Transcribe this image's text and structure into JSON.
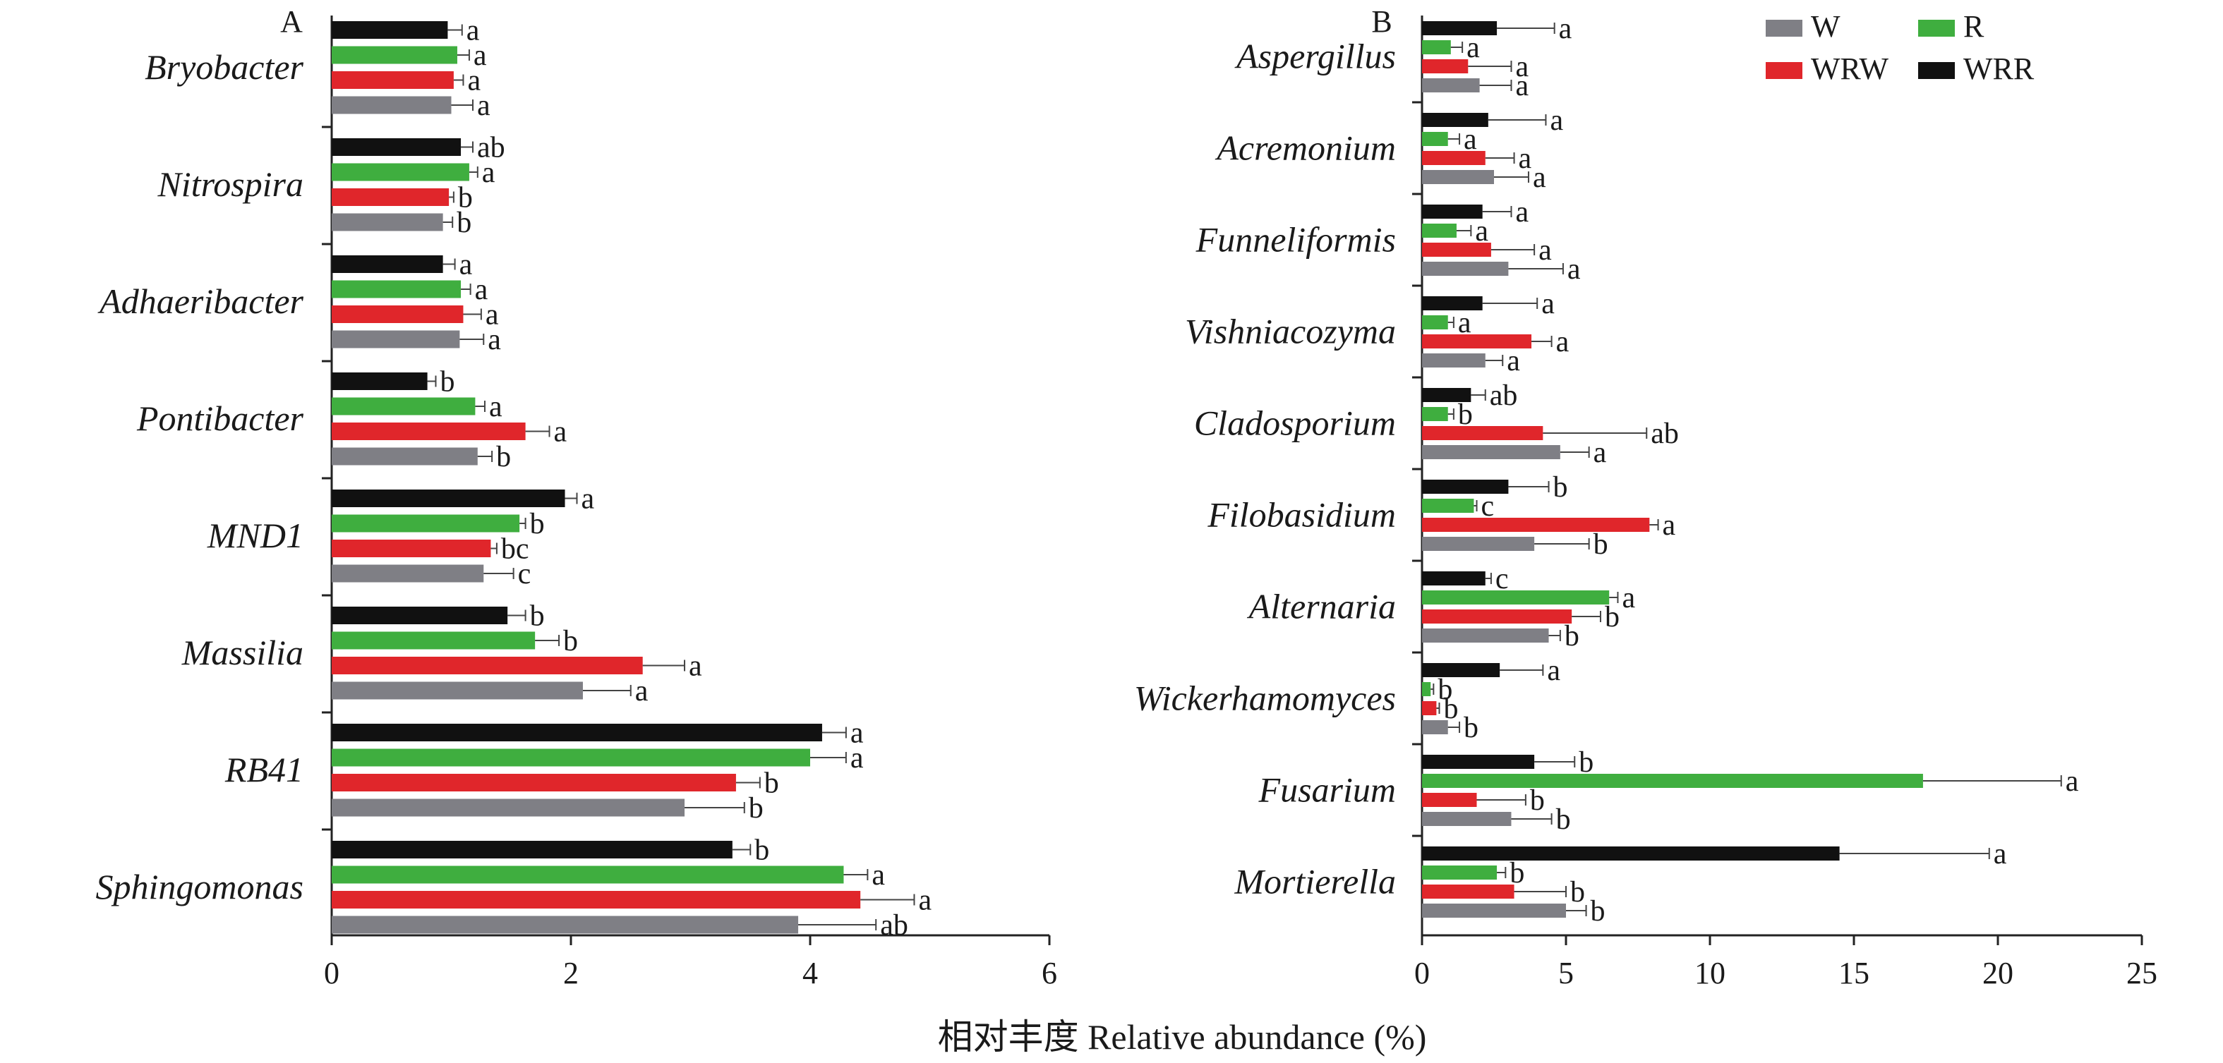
{
  "xlabel": "相对丰度 Relative abundance (%)",
  "legend": [
    {
      "name": "W",
      "color": "#7f7f85"
    },
    {
      "name": "R",
      "color": "#3fae3f"
    },
    {
      "name": "WRW",
      "color": "#e0262b"
    },
    {
      "name": "WRR",
      "color": "#111111"
    }
  ],
  "chart_data": [
    {
      "type": "bar",
      "orientation": "horizontal",
      "panel": "A",
      "xlim": [
        0,
        6
      ],
      "xticks": [
        0,
        2,
        4,
        6
      ],
      "categories": [
        "Bryobacter",
        "Nitrospira",
        "Adhaeribacter",
        "Pontibacter",
        "MND1",
        "Massilia",
        "RB41",
        "Sphingomonas"
      ],
      "series": [
        {
          "name": "WRR",
          "color": "#111111",
          "values": [
            0.97,
            1.08,
            0.93,
            0.8,
            1.95,
            1.47,
            4.1,
            3.35
          ],
          "errors": [
            0.12,
            0.1,
            0.1,
            0.07,
            0.1,
            0.15,
            0.2,
            0.15
          ],
          "labels": [
            "a",
            "ab",
            "a",
            "b",
            "a",
            "b",
            "a",
            "b"
          ]
        },
        {
          "name": "R",
          "color": "#3fae3f",
          "values": [
            1.05,
            1.15,
            1.08,
            1.2,
            1.57,
            1.7,
            4.0,
            4.28
          ],
          "errors": [
            0.1,
            0.07,
            0.08,
            0.08,
            0.05,
            0.2,
            0.3,
            0.2
          ],
          "labels": [
            "a",
            "a",
            "a",
            "a",
            "b",
            "b",
            "a",
            "a"
          ]
        },
        {
          "name": "WRW",
          "color": "#e0262b",
          "values": [
            1.02,
            0.98,
            1.1,
            1.62,
            1.33,
            2.6,
            3.38,
            4.42
          ],
          "errors": [
            0.08,
            0.04,
            0.15,
            0.2,
            0.05,
            0.35,
            0.2,
            0.45
          ],
          "labels": [
            "a",
            "b",
            "a",
            "a",
            "bc",
            "a",
            "b",
            "a"
          ]
        },
        {
          "name": "W",
          "color": "#7f7f85",
          "values": [
            1.0,
            0.93,
            1.07,
            1.22,
            1.27,
            2.1,
            2.95,
            3.9
          ],
          "errors": [
            0.18,
            0.08,
            0.2,
            0.12,
            0.25,
            0.4,
            0.5,
            0.65
          ],
          "labels": [
            "a",
            "b",
            "a",
            "b",
            "c",
            "a",
            "b",
            "ab"
          ]
        }
      ]
    },
    {
      "type": "bar",
      "orientation": "horizontal",
      "panel": "B",
      "xlim": [
        0,
        25
      ],
      "xticks": [
        0,
        5,
        10,
        15,
        20,
        25
      ],
      "categories": [
        "Aspergillus",
        "Acremonium",
        "Funneliformis",
        "Vishniacozyma",
        "Cladosporium",
        "Filobasidium",
        "Alternaria",
        "Wickerhamomyces",
        "Fusarium",
        "Mortierella"
      ],
      "series": [
        {
          "name": "WRR",
          "color": "#111111",
          "values": [
            2.6,
            2.3,
            2.1,
            2.1,
            1.7,
            3.0,
            2.2,
            2.7,
            3.9,
            14.5
          ],
          "errors": [
            2.0,
            2.0,
            1.0,
            1.9,
            0.5,
            1.4,
            0.2,
            1.5,
            1.4,
            5.2
          ],
          "labels": [
            "a",
            "a",
            "a",
            "a",
            "ab",
            "b",
            "c",
            "a",
            "b",
            "a"
          ]
        },
        {
          "name": "R",
          "color": "#3fae3f",
          "values": [
            1.0,
            0.9,
            1.2,
            0.9,
            0.9,
            1.8,
            6.5,
            0.3,
            17.4,
            2.6
          ],
          "errors": [
            0.4,
            0.4,
            0.5,
            0.2,
            0.2,
            0.1,
            0.3,
            0.1,
            4.8,
            0.3
          ],
          "labels": [
            "a",
            "a",
            "a",
            "a",
            "b",
            "c",
            "a",
            "b",
            "a",
            "b"
          ]
        },
        {
          "name": "WRW",
          "color": "#e0262b",
          "values": [
            1.6,
            2.2,
            2.4,
            3.8,
            4.2,
            7.9,
            5.2,
            0.5,
            1.9,
            3.2
          ],
          "errors": [
            1.5,
            1.0,
            1.5,
            0.7,
            3.6,
            0.3,
            1.0,
            0.1,
            1.7,
            1.8
          ],
          "labels": [
            "a",
            "a",
            "a",
            "a",
            "ab",
            "a",
            "b",
            "b",
            "b",
            "b"
          ]
        },
        {
          "name": "W",
          "color": "#7f7f85",
          "values": [
            2.0,
            2.5,
            3.0,
            2.2,
            4.8,
            3.9,
            4.4,
            0.9,
            3.1,
            5.0
          ],
          "errors": [
            1.1,
            1.2,
            1.9,
            0.6,
            1.0,
            1.9,
            0.4,
            0.4,
            1.4,
            0.7
          ],
          "labels": [
            "a",
            "a",
            "a",
            "a",
            "a",
            "b",
            "b",
            "b",
            "b",
            "b"
          ]
        }
      ]
    }
  ]
}
